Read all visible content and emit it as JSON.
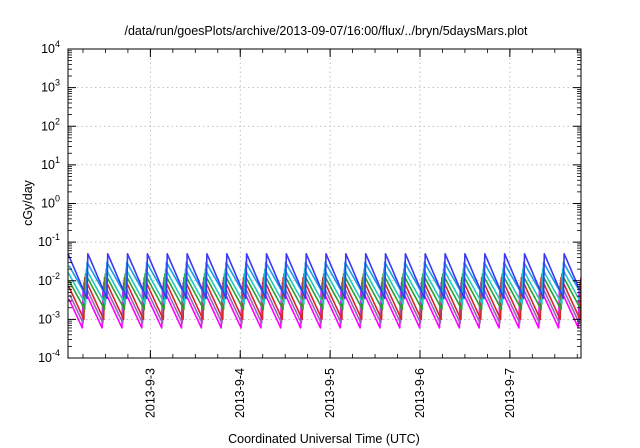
{
  "chart_data": {
    "type": "line",
    "title": "/data/run/goesPlots/archive/2013-09-07/16:00/flux/../bryn/5daysMars.plot",
    "xlabel": "Coordinated Universal Time (UTC)",
    "ylabel": "cGy/day",
    "y_scale": "log",
    "ylim": [
      0.0001,
      10000
    ],
    "xlim": [
      "2013-09-02T02:00",
      "2013-09-07T19:00"
    ],
    "x_ticks": [
      "2013-9-3",
      "2013-9-4",
      "2013-9-5",
      "2013-9-6",
      "2013-9-7"
    ],
    "y_ticks": [
      {
        "base": "10",
        "exp": "-4"
      },
      {
        "base": "10",
        "exp": "-3"
      },
      {
        "base": "10",
        "exp": "-2"
      },
      {
        "base": "10",
        "exp": "-1"
      },
      {
        "base": "10",
        "exp": "0"
      },
      {
        "base": "10",
        "exp": "1"
      },
      {
        "base": "10",
        "exp": "2"
      },
      {
        "base": "10",
        "exp": "3"
      },
      {
        "base": "10",
        "exp": "4"
      }
    ],
    "grid": true,
    "legend": "none",
    "sawtooth_period_hours": 5.3,
    "series": [
      {
        "color": "#3a3af5",
        "peak": 0.05,
        "trough": 0.0035,
        "phase": 0.0
      },
      {
        "color": "#1a9fe0",
        "peak": 0.03,
        "trough": 0.004,
        "phase": 0.04
      },
      {
        "color": "#20c8c0",
        "peak": 0.02,
        "trough": 0.0025,
        "phase": 0.08
      },
      {
        "color": "#2ca02c",
        "peak": 0.015,
        "trough": 0.0018,
        "phase": 0.12
      },
      {
        "color": "#d62728",
        "peak": 0.012,
        "trough": 0.001,
        "phase": 0.16
      },
      {
        "color": "#9467bd",
        "peak": 0.009,
        "trough": 0.0008,
        "phase": 0.2
      },
      {
        "color": "#ff00ff",
        "peak": 0.007,
        "trough": 0.0006,
        "phase": 0.24
      }
    ]
  }
}
